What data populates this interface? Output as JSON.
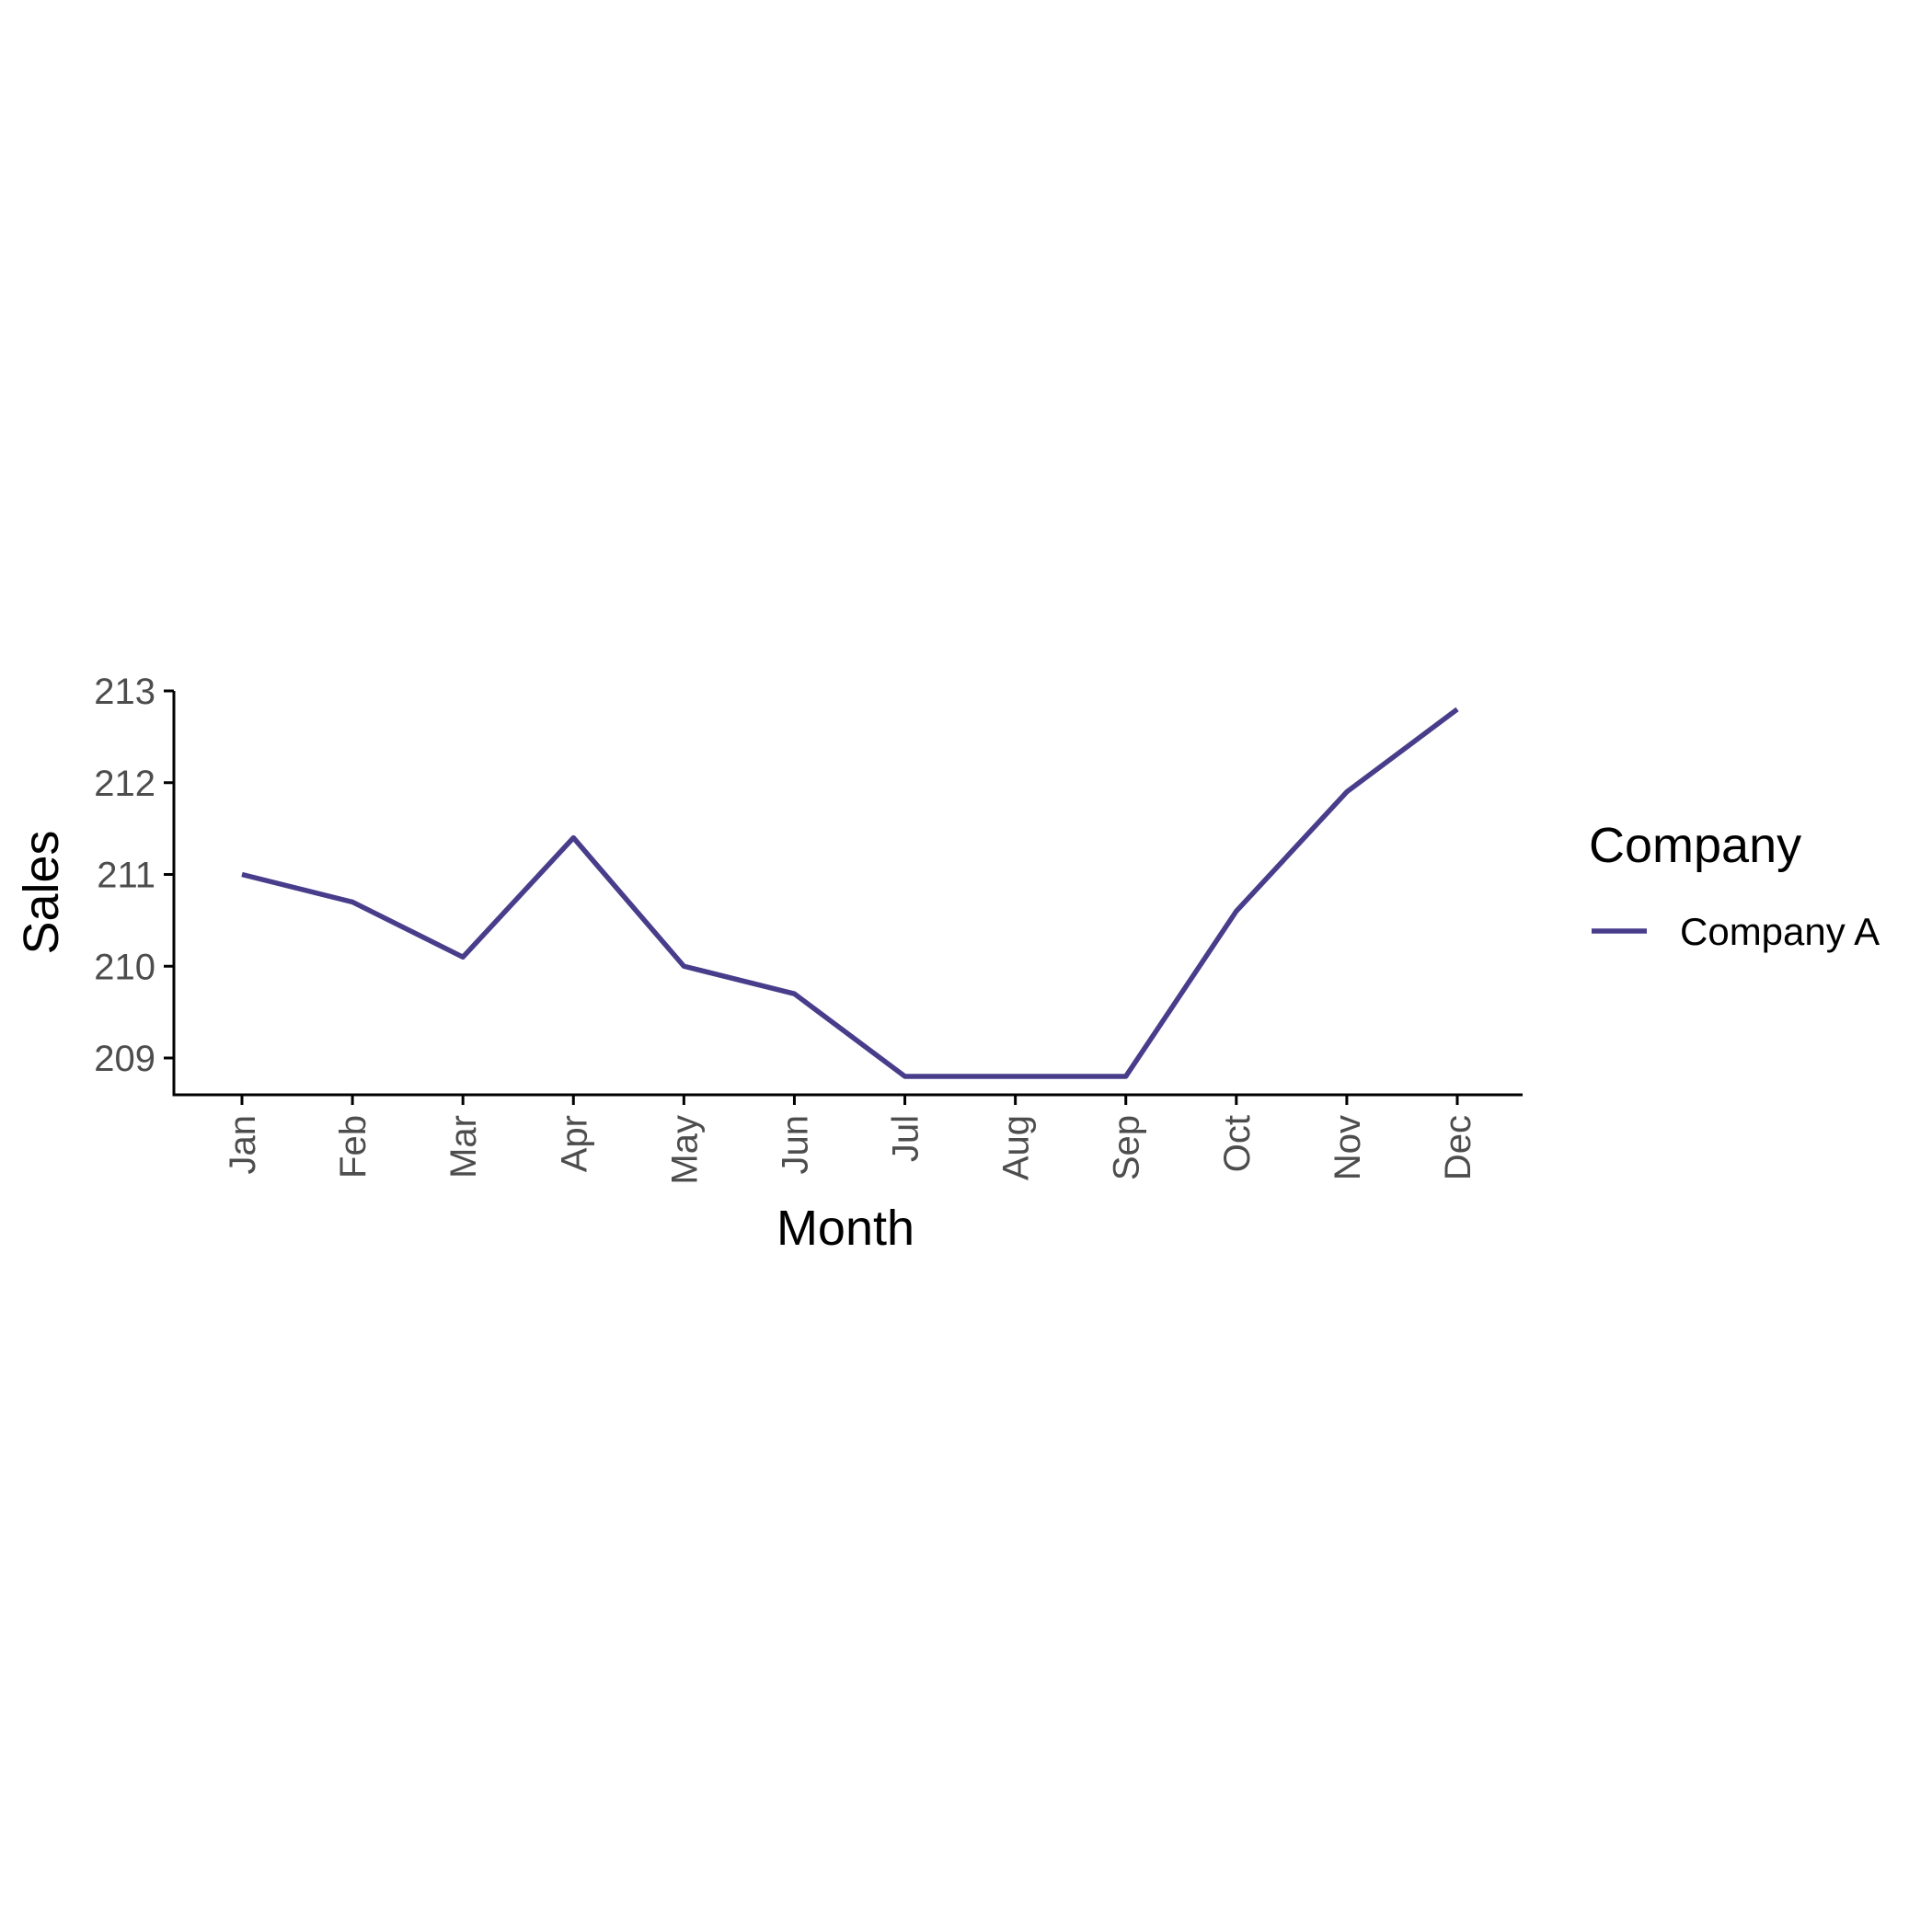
{
  "chart_data": {
    "type": "line",
    "xlabel": "Month",
    "ylabel": "Sales",
    "categories": [
      "Jan",
      "Feb",
      "Mar",
      "Apr",
      "May",
      "Jun",
      "Jul",
      "Aug",
      "Sep",
      "Oct",
      "Nov",
      "Dec"
    ],
    "series": [
      {
        "name": "Company A",
        "color": "#483d8b",
        "values": [
          211.0,
          210.7,
          210.1,
          211.4,
          210.0,
          209.7,
          208.8,
          208.8,
          208.8,
          210.6,
          211.9,
          212.8
        ]
      }
    ],
    "yticks": [
      209,
      210,
      211,
      212,
      213
    ],
    "ylim": [
      208.6,
      213.0
    ],
    "grid": false,
    "legend": {
      "title": "Company",
      "placement": "right"
    }
  }
}
